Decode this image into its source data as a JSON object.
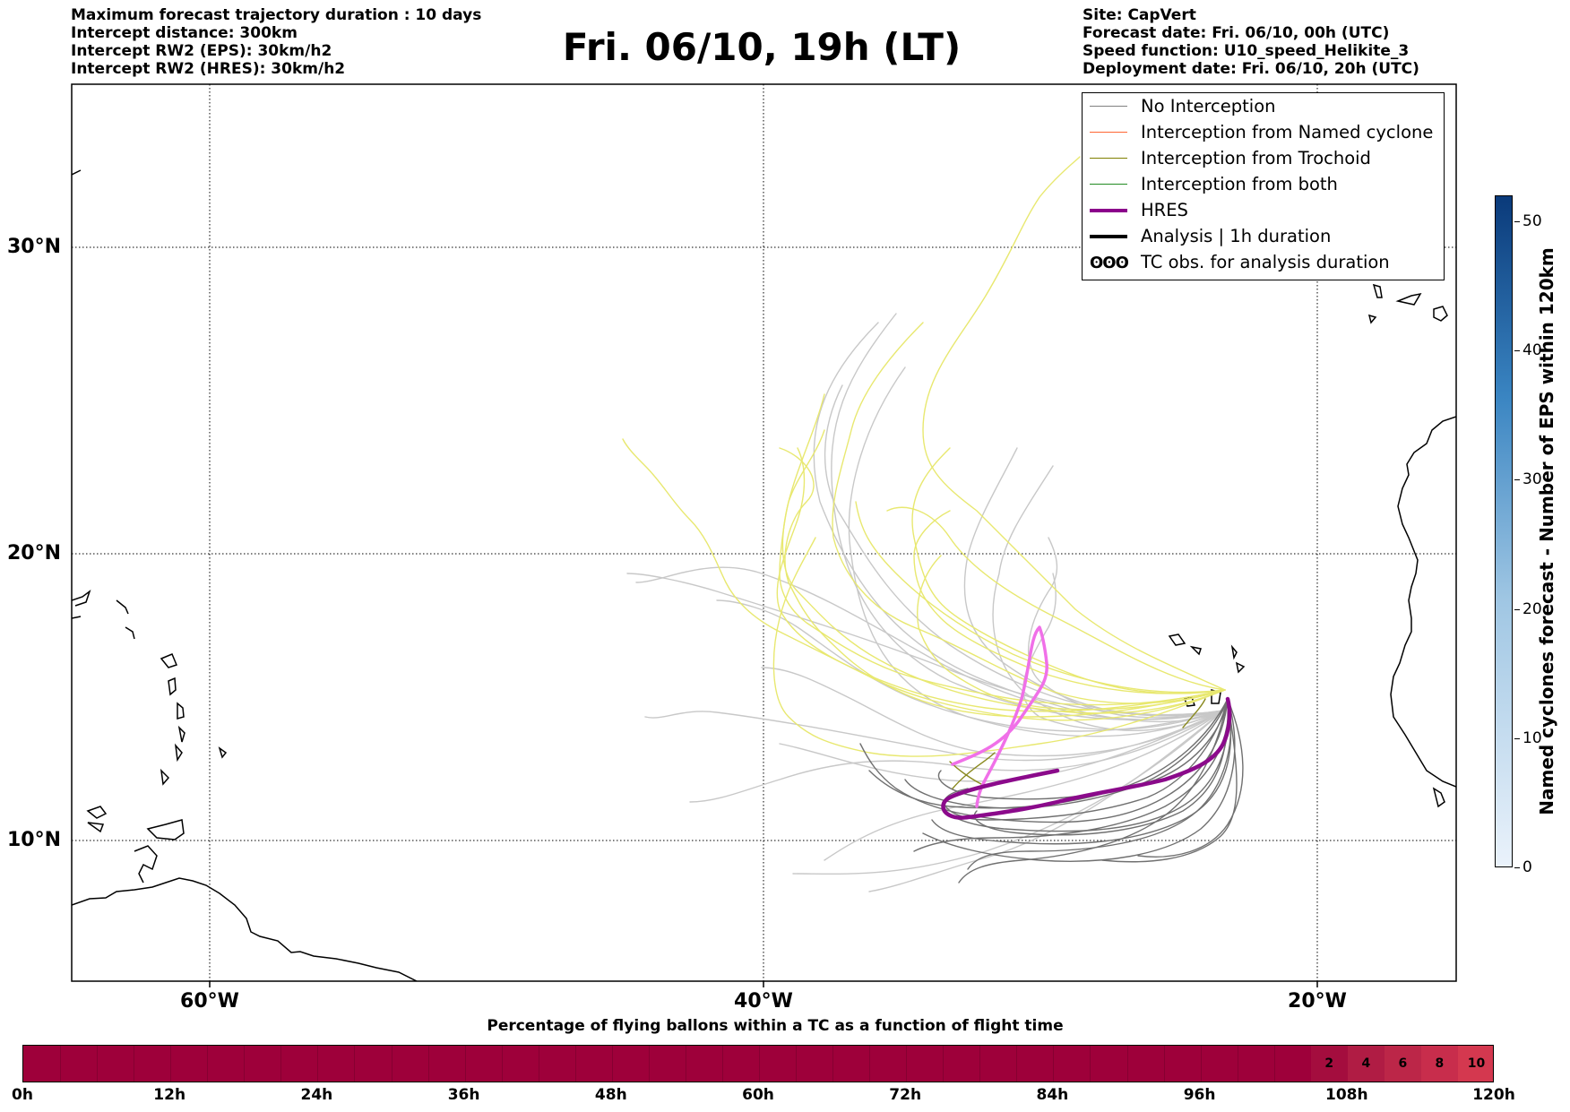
{
  "header": {
    "left": [
      "Maximum forecast trajectory duration : 10 days",
      "Intercept distance: 300km",
      "Intercept RW2 (EPS):  30km/h2",
      "Intercept RW2 (HRES): 30km/h2"
    ],
    "title": "Fri. 06/10, 19h (LT)",
    "right": [
      "Site: CapVert",
      "Forecast date: Fri. 06/10, 00h (UTC)",
      "Speed function: U10_speed_Helikite_3",
      "Deployment date: Fri. 06/10, 20h (UTC)"
    ]
  },
  "map": {
    "lat_labels": [
      "30°N",
      "20°N",
      "10°N"
    ],
    "lon_labels": [
      "60°W",
      "40°W",
      "20°W"
    ],
    "track_colors": {
      "no_interception": "#707070",
      "no_interception_light": "#c8c8c8",
      "trochoid": "#8a8a20",
      "trochoid_light": "#e8e870",
      "hres": "#8b0a8b",
      "hres_light": "#f070e8"
    }
  },
  "legend": {
    "items": [
      {
        "label": "No Interception",
        "color": "#808080",
        "width": 1.5
      },
      {
        "label": "Interception from Named cyclone",
        "color": "#ff6633",
        "width": 1.5
      },
      {
        "label": "Interception from Trochoid",
        "color": "#808000",
        "width": 1.5
      },
      {
        "label": "Interception from both",
        "color": "#228b22",
        "width": 1.5
      },
      {
        "label": "HRES",
        "color": "#8b008b",
        "width": 4.5
      },
      {
        "label": "Analysis | 1h duration",
        "color": "#000000",
        "width": 4
      }
    ],
    "tc_symbol": "ʘʘʘ",
    "tc_label": "TC obs. for analysis duration"
  },
  "colorbar": {
    "title": "Named cyclones forecast - Number of EPS within 120km",
    "ticks": [
      "0",
      "10",
      "20",
      "30",
      "40",
      "50"
    ],
    "min_color": "#eaf2fb",
    "max_color": "#0a3a7a"
  },
  "timebar": {
    "title": "Percentage of flying ballons within a TC as a function of flight time",
    "base_color": "#9e003a",
    "segments": [
      {
        "label": "2",
        "color": "#a40d3e"
      },
      {
        "label": "4",
        "color": "#b01c44"
      },
      {
        "label": "6",
        "color": "#bc2648"
      },
      {
        "label": "8",
        "color": "#c82d4c"
      },
      {
        "label": "10",
        "color": "#d4384f"
      }
    ],
    "labels": [
      "0h",
      "12h",
      "24h",
      "36h",
      "48h",
      "60h",
      "72h",
      "84h",
      "96h",
      "108h",
      "120h"
    ]
  }
}
